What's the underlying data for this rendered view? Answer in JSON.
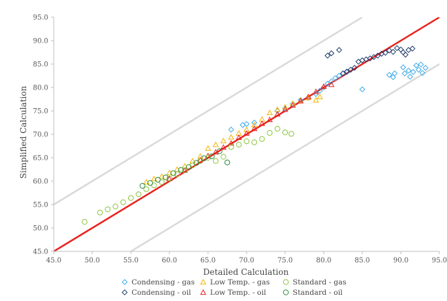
{
  "chart_data": {
    "type": "scatter",
    "xlabel": "Detailed Calculation",
    "ylabel": "Simplified Calculation",
    "xlim": [
      45,
      95
    ],
    "ylim": [
      45,
      95
    ],
    "x_ticks": [
      "45.0",
      "50.0",
      "55.0",
      "60.0",
      "65.0",
      "70.0",
      "75.0",
      "80.0",
      "85.0",
      "90.0",
      "95.0"
    ],
    "y_ticks": [
      "45.0",
      "50.0",
      "55.0",
      "60.0",
      "65.0",
      "70.0",
      "75.0",
      "80.0",
      "85.0",
      "90.0",
      "95.0"
    ],
    "grid": false,
    "legend_position": "bottom",
    "reference_lines": [
      {
        "kind": "identity",
        "color": "#e8231f",
        "points": [
          [
            45,
            45
          ],
          [
            95,
            95
          ]
        ]
      },
      {
        "kind": "upper-bound",
        "color": "#d9d9d9",
        "points": [
          [
            45,
            55
          ],
          [
            85,
            95
          ]
        ]
      },
      {
        "kind": "lower-bound",
        "color": "#d9d9d9",
        "points": [
          [
            55,
            45
          ],
          [
            95,
            85
          ]
        ]
      }
    ],
    "series": [
      {
        "name": "Condensing - gas",
        "marker": "diamond",
        "color": "#3fa9e8",
        "points": [
          [
            68,
            71
          ],
          [
            69.5,
            72
          ],
          [
            70,
            72.2
          ],
          [
            71,
            72.5
          ],
          [
            74,
            75
          ],
          [
            75,
            75.5
          ],
          [
            76,
            76.5
          ],
          [
            77,
            77.3
          ],
          [
            78,
            77.8
          ],
          [
            79,
            78.6
          ],
          [
            79.5,
            79.3
          ],
          [
            80,
            80
          ],
          [
            80.5,
            80.8
          ],
          [
            81,
            81.3
          ],
          [
            81.5,
            82
          ],
          [
            82,
            82.5
          ],
          [
            82.5,
            83
          ],
          [
            83,
            83.3
          ],
          [
            85,
            79.6
          ],
          [
            88.5,
            82.7
          ],
          [
            89,
            82.2
          ],
          [
            89.2,
            83
          ],
          [
            90.3,
            84.3
          ],
          [
            90.5,
            83
          ],
          [
            91,
            83.6
          ],
          [
            91.2,
            82.3
          ],
          [
            91.6,
            83.3
          ],
          [
            92,
            84.7
          ],
          [
            92.3,
            83.8
          ],
          [
            92.6,
            84.9
          ],
          [
            92.8,
            83.1
          ],
          [
            93.2,
            84.2
          ]
        ]
      },
      {
        "name": "Condensing - oil",
        "marker": "diamond",
        "color": "#1f3b6b",
        "points": [
          [
            80.5,
            86.8
          ],
          [
            81,
            87.3
          ],
          [
            82,
            88
          ],
          [
            82.5,
            83
          ],
          [
            83,
            83.4
          ],
          [
            83.5,
            83.8
          ],
          [
            84,
            84.2
          ],
          [
            84.5,
            85.5
          ],
          [
            85,
            85.8
          ],
          [
            85.5,
            86
          ],
          [
            86,
            86.2
          ],
          [
            86.5,
            86.5
          ],
          [
            87,
            86.8
          ],
          [
            87.5,
            87.2
          ],
          [
            88,
            87.4
          ],
          [
            88.5,
            87.9
          ],
          [
            89,
            87.6
          ],
          [
            89.5,
            88.4
          ],
          [
            90,
            88.1
          ],
          [
            90.3,
            87.5
          ],
          [
            90.6,
            87
          ],
          [
            91,
            88
          ],
          [
            91.5,
            88.3
          ]
        ]
      },
      {
        "name": "Low Temp. - gas",
        "marker": "triangle",
        "color": "#f4b400",
        "points": [
          [
            57,
            59.8
          ],
          [
            58,
            60.5
          ],
          [
            59,
            61
          ],
          [
            60,
            61.8
          ],
          [
            61,
            62.5
          ],
          [
            62,
            63.2
          ],
          [
            63,
            64.3
          ],
          [
            64,
            65.3
          ],
          [
            65,
            67
          ],
          [
            66,
            67.8
          ],
          [
            67,
            68.6
          ],
          [
            68,
            69.4
          ],
          [
            69,
            70.2
          ],
          [
            70,
            71
          ],
          [
            71,
            72
          ],
          [
            72,
            73.2
          ],
          [
            73,
            74.6
          ],
          [
            74,
            75.3
          ],
          [
            75,
            75.8
          ],
          [
            76,
            76.6
          ],
          [
            77,
            77.2
          ],
          [
            78,
            77.8
          ],
          [
            79,
            77.3
          ],
          [
            79.5,
            78
          ]
        ]
      },
      {
        "name": "Low Temp. - oil",
        "marker": "triangle",
        "color": "#e8231f",
        "points": [
          [
            60,
            60.5
          ],
          [
            62,
            62.3
          ],
          [
            64,
            64.5
          ],
          [
            65,
            65.4
          ],
          [
            66,
            66.2
          ],
          [
            67,
            67.2
          ],
          [
            68,
            68.1
          ],
          [
            69,
            69.3
          ],
          [
            70,
            70.2
          ],
          [
            71,
            71.2
          ],
          [
            72,
            72.3
          ],
          [
            73,
            73.1
          ],
          [
            74,
            74.3
          ],
          [
            75,
            75.3
          ],
          [
            76,
            76.2
          ],
          [
            77,
            77.1
          ],
          [
            78,
            78
          ],
          [
            79,
            79.1
          ],
          [
            80,
            80.2
          ],
          [
            81,
            80.6
          ]
        ]
      },
      {
        "name": "Standard - gas",
        "marker": "circle",
        "color": "#8cc63f",
        "points": [
          [
            49,
            51.3
          ],
          [
            51,
            53.3
          ],
          [
            52,
            54
          ],
          [
            53,
            54.6
          ],
          [
            54,
            55.5
          ],
          [
            55,
            56.4
          ],
          [
            56,
            57.2
          ],
          [
            57,
            58.3
          ],
          [
            58,
            59.1
          ],
          [
            59,
            59.8
          ],
          [
            60,
            60.6
          ],
          [
            61,
            61.5
          ],
          [
            62,
            62.3
          ],
          [
            63,
            63.4
          ],
          [
            64,
            64.3
          ],
          [
            65,
            65
          ],
          [
            66,
            64.3
          ],
          [
            67,
            65.2
          ],
          [
            68,
            67.3
          ],
          [
            69,
            67.8
          ],
          [
            70,
            68.5
          ],
          [
            71,
            68.3
          ],
          [
            72,
            69
          ],
          [
            73,
            70.3
          ],
          [
            74,
            71.2
          ],
          [
            75,
            70.4
          ],
          [
            75.8,
            70.1
          ]
        ]
      },
      {
        "name": "Standard - oil",
        "marker": "circle",
        "color": "#2e8b3e",
        "points": [
          [
            56.5,
            59
          ],
          [
            57.5,
            59.6
          ],
          [
            58.5,
            60.3
          ],
          [
            59.5,
            60.8
          ],
          [
            60.5,
            61.7
          ],
          [
            61.5,
            62.4
          ],
          [
            62.5,
            63
          ],
          [
            63.5,
            63.9
          ],
          [
            64.5,
            64.9
          ],
          [
            65.5,
            65.3
          ],
          [
            66.5,
            66.4
          ],
          [
            67.5,
            64
          ]
        ]
      }
    ]
  }
}
